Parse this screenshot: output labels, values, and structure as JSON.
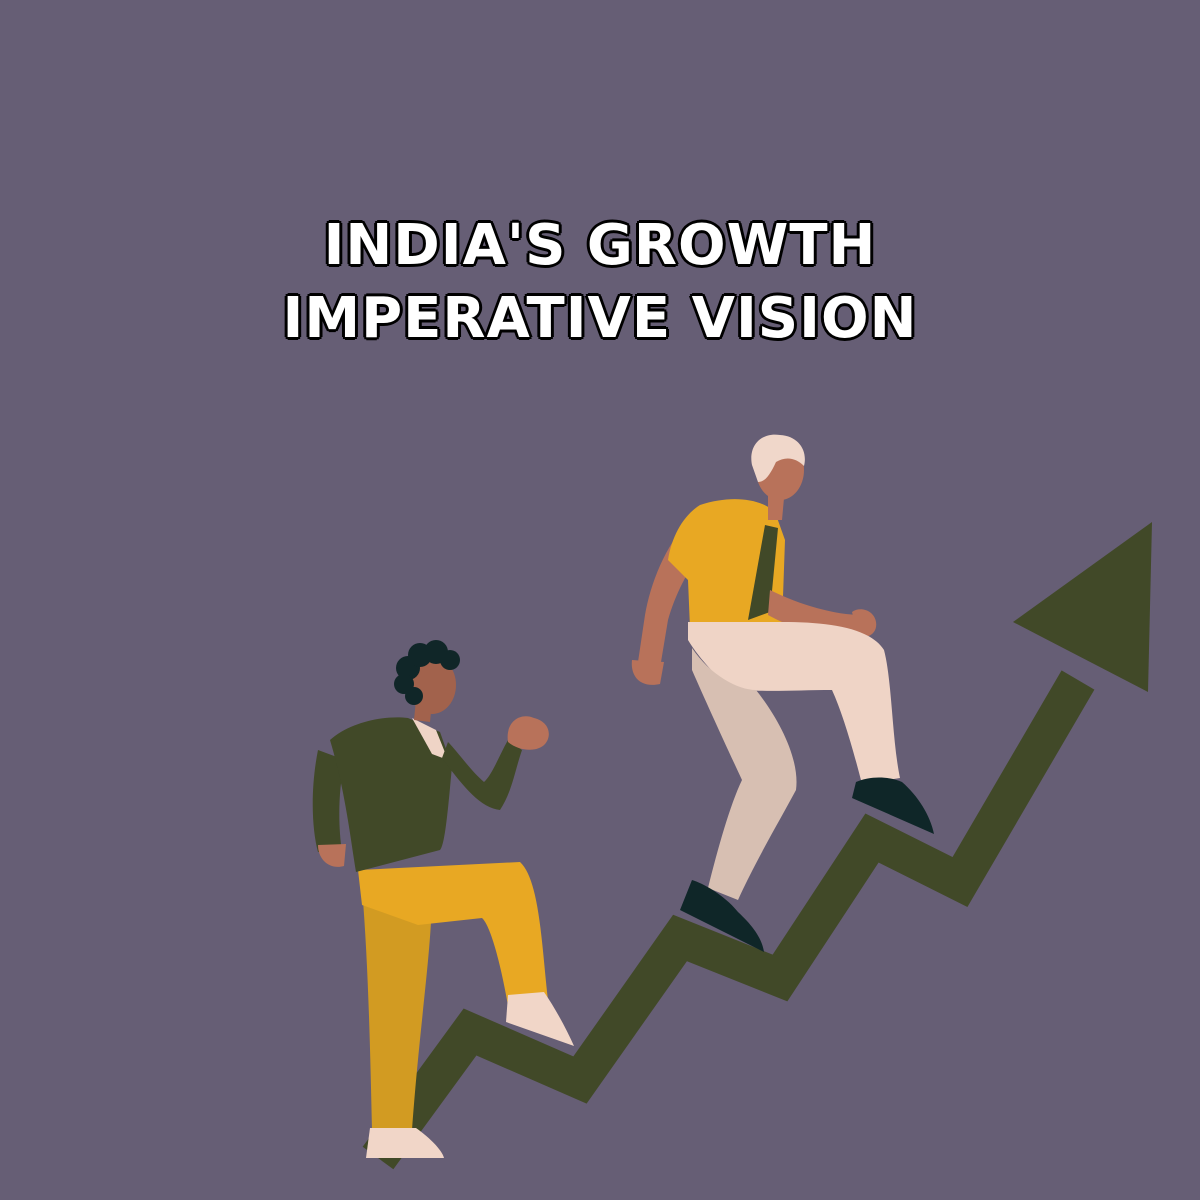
{
  "title": {
    "line1": "INDIA'S GROWTH",
    "line2": "IMPERATIVE VISION"
  },
  "colors": {
    "background": "#665e75",
    "arrow": "#414928",
    "mustard": "#e8a823",
    "mustard_dark": "#d29b22",
    "skin": "#b8725a",
    "skin_dark": "#a2624c",
    "olive_jacket": "#414928",
    "cream_pants": "#efd4c6",
    "cream_pants_shade": "#d7bfb2",
    "shoe_dark": "#0f2628",
    "shoe_light": "#f1d6c8",
    "hair_white": "#f0d7ca",
    "hair_dark": "#102628"
  },
  "icons": {
    "arrow": "growth-arrow-icon",
    "person_front": "climbing-person-front-icon",
    "person_back": "climbing-person-back-icon"
  }
}
